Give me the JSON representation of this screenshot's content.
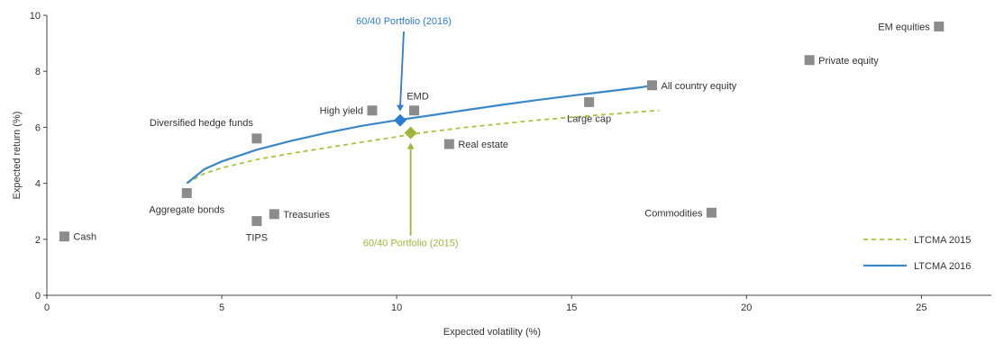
{
  "chart_data": {
    "type": "scatter",
    "xlabel": "Expected volatility (%)",
    "ylabel": "Expected return (%)",
    "xlim": [
      0,
      27
    ],
    "ylim": [
      0,
      10
    ],
    "x_ticks": [
      0,
      5,
      10,
      15,
      20,
      25
    ],
    "y_ticks": [
      0,
      2,
      4,
      6,
      8,
      10
    ],
    "grid": false,
    "legend_position": "bottom-right",
    "colors": {
      "asset_marker": "#8c8c8c",
      "ltcma_2016": "#3a87c8",
      "ltcma_2015": "#a8c53a",
      "portfolio_2016": "#2f7bd1",
      "portfolio_2015": "#9fb63b",
      "axis": "#444444",
      "text": "#333333"
    },
    "assets": [
      {
        "name": "Cash",
        "x": 0.5,
        "y": 2.1
      },
      {
        "name": "TIPS",
        "x": 6.0,
        "y": 2.65
      },
      {
        "name": "Treasuries",
        "x": 6.5,
        "y": 2.9
      },
      {
        "name": "Aggregate bonds",
        "x": 4.0,
        "y": 3.65
      },
      {
        "name": "Diversified hedge funds",
        "x": 6.0,
        "y": 5.6
      },
      {
        "name": "High yield",
        "x": 9.3,
        "y": 6.6
      },
      {
        "name": "EMD",
        "x": 10.5,
        "y": 6.6
      },
      {
        "name": "Real estate",
        "x": 11.5,
        "y": 5.4
      },
      {
        "name": "Large cap",
        "x": 15.5,
        "y": 6.9
      },
      {
        "name": "All country equity",
        "x": 17.3,
        "y": 7.5
      },
      {
        "name": "Commodities",
        "x": 19.0,
        "y": 2.95
      },
      {
        "name": "Private equity",
        "x": 21.8,
        "y": 8.4
      },
      {
        "name": "EM equities",
        "x": 25.5,
        "y": 9.6
      }
    ],
    "series": [
      {
        "name": "LTCMA 2015",
        "style": "dashed",
        "x": [
          4.0,
          4.5,
          5.0,
          6.0,
          7.0,
          8.0,
          9.0,
          10.0,
          10.4,
          11.0,
          12.0,
          13.0,
          14.0,
          15.0,
          16.0,
          17.0,
          17.5
        ],
        "y": [
          4.0,
          4.35,
          4.55,
          4.85,
          5.07,
          5.27,
          5.47,
          5.66,
          5.75,
          5.85,
          6.0,
          6.13,
          6.25,
          6.36,
          6.46,
          6.56,
          6.6
        ]
      },
      {
        "name": "LTCMA 2016",
        "style": "solid",
        "x": [
          4.0,
          4.5,
          5.0,
          6.0,
          7.0,
          8.0,
          9.0,
          10.0,
          11.0,
          12.0,
          13.0,
          14.0,
          15.0,
          16.0,
          17.0,
          17.3
        ],
        "y": [
          4.0,
          4.5,
          4.78,
          5.2,
          5.52,
          5.8,
          6.05,
          6.25,
          6.43,
          6.62,
          6.8,
          6.97,
          7.13,
          7.28,
          7.43,
          7.5
        ]
      }
    ],
    "portfolios": [
      {
        "name": "60/40 Portfolio (2016)",
        "x": 10.1,
        "y": 6.25
      },
      {
        "name": "60/40 Portfolio (2015)",
        "x": 10.4,
        "y": 5.8
      }
    ]
  }
}
